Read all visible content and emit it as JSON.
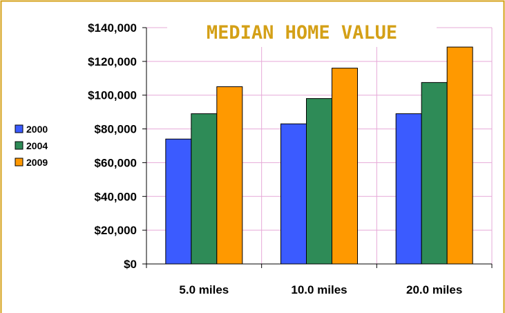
{
  "chart_data": {
    "type": "bar",
    "title": "MEDIAN HOME VALUE",
    "xlabel": "",
    "ylabel": "",
    "categories": [
      "5.0 miles",
      "10.0 miles",
      "20.0 miles"
    ],
    "series": [
      {
        "name": "2000",
        "color": "#3b5bff",
        "values": [
          74000,
          83000,
          89000
        ]
      },
      {
        "name": "2004",
        "color": "#2e8b57",
        "values": [
          89000,
          98000,
          107500
        ]
      },
      {
        "name": "2009",
        "color": "#ff9900",
        "values": [
          105000,
          116000,
          128500
        ]
      }
    ],
    "ylim": [
      0,
      140000
    ],
    "yticks": [
      "$0",
      "$20,000",
      "$40,000",
      "$60,000",
      "$80,000",
      "$100,000",
      "$120,000",
      "$140,000"
    ],
    "grid": true,
    "legend_position": "left",
    "colors": {
      "frame_border": "#d4a017",
      "gridline": "#e6a8d7",
      "title": "#d4a017",
      "axis": "#000000"
    }
  }
}
